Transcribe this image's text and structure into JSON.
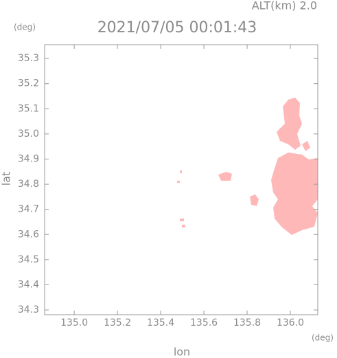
{
  "chart_data": {
    "type": "map",
    "title": "2021/07/05 00:01:43",
    "subtitle": "ALT(km) 2.0",
    "x_label": "lon",
    "y_label": "lat",
    "x_unit": "(deg)",
    "y_unit": "(deg)",
    "xlim": [
      134.863,
      136.127
    ],
    "ylim": [
      34.281,
      35.355
    ],
    "xticks": [
      {
        "value": 135.0,
        "label": "135.0"
      },
      {
        "value": 135.2,
        "label": "135.2"
      },
      {
        "value": 135.4,
        "label": "135.4"
      },
      {
        "value": 135.6,
        "label": "135.6"
      },
      {
        "value": 135.8,
        "label": "135.8"
      },
      {
        "value": 136.0,
        "label": "136.0"
      }
    ],
    "yticks": [
      {
        "value": 34.3,
        "label": "34.3"
      },
      34.4,
      34.5,
      34.6,
      34.7,
      34.8,
      34.9,
      {
        "value": 35.0,
        "label": "35.0"
      },
      35.1,
      35.2,
      35.3
    ],
    "echo_color": "#ffb8b8"
  }
}
